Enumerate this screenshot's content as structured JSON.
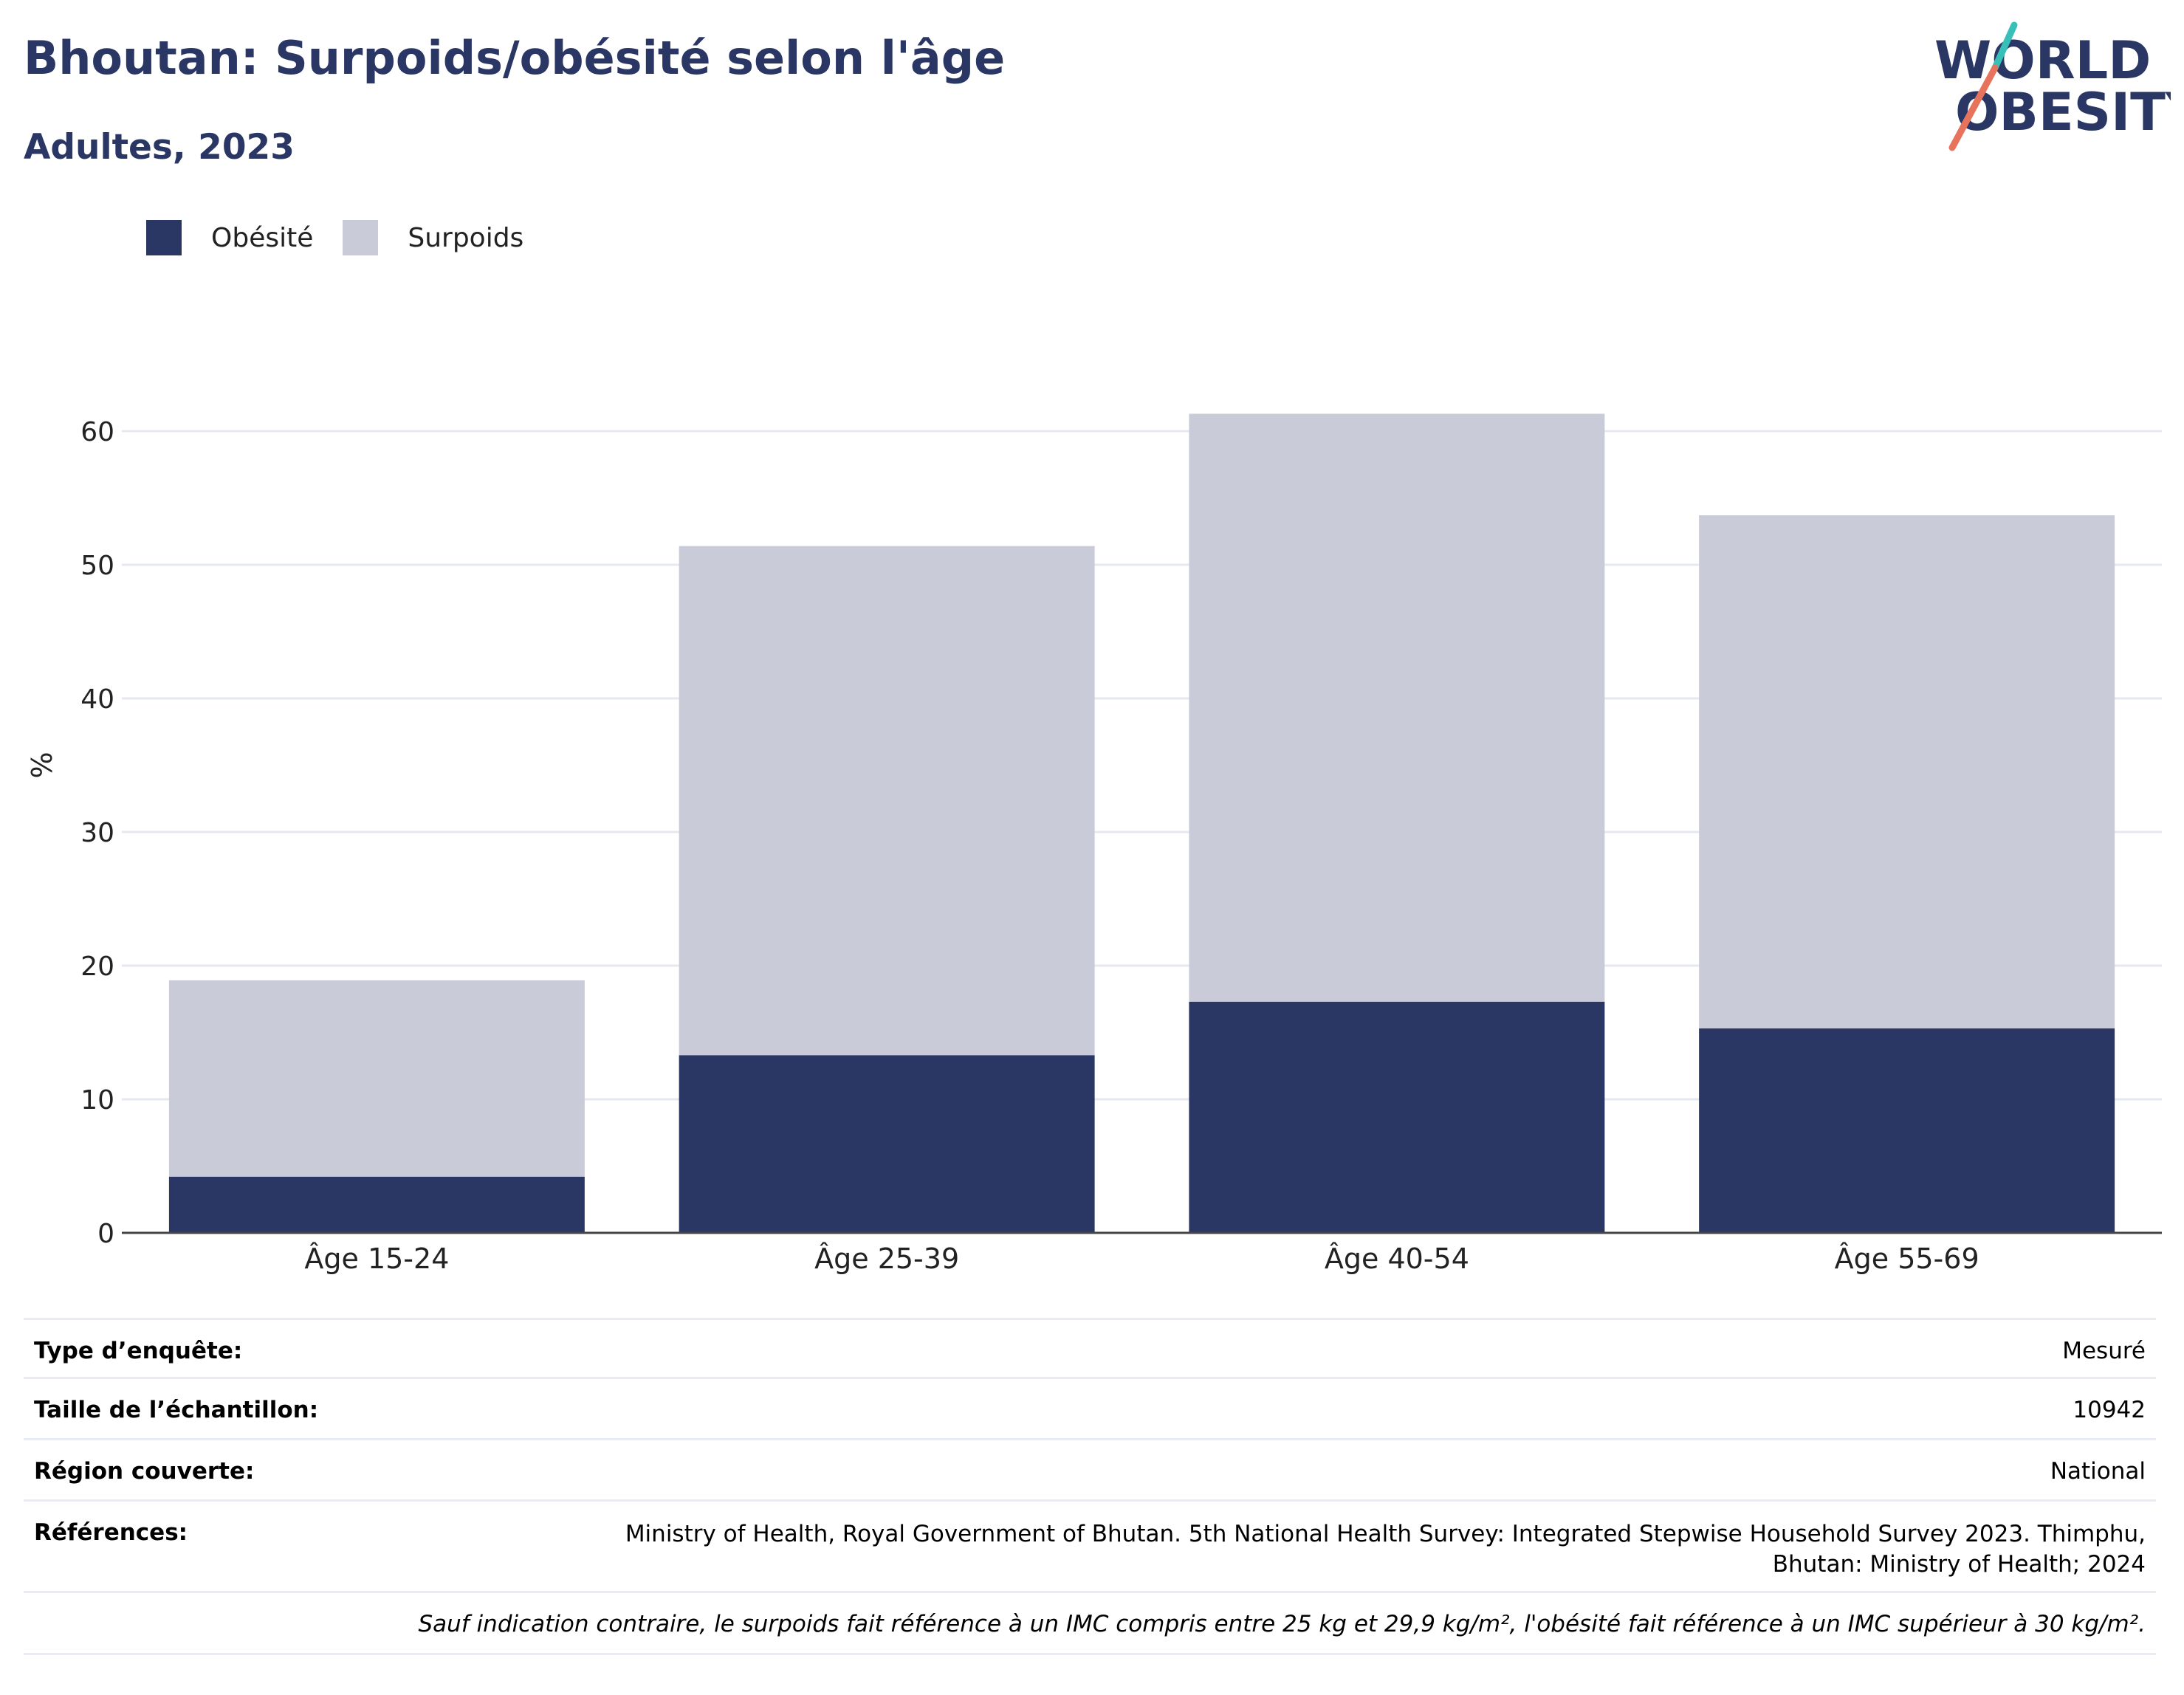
{
  "header": {
    "title": "Bhoutan: Surpoids/obésité selon l'âge",
    "subtitle": "Adultes, 2023"
  },
  "logo": {
    "line1": "WORLD",
    "line2": "OBESITY",
    "accent_colors": [
      "#37bfb8",
      "#e8735c"
    ]
  },
  "colors": {
    "obesity": "#2a3664",
    "overweight": "#c9ccd8",
    "grid": "#e6e8ef",
    "axis": "#444444"
  },
  "legend": [
    {
      "label": "Obésité",
      "color": "#2a3664"
    },
    {
      "label": "Surpoids",
      "color": "#c9ccd8"
    }
  ],
  "chart_data": {
    "type": "bar",
    "stacked": true,
    "categories": [
      "Âge 15-24",
      "Âge 25-39",
      "Âge 40-54",
      "Âge 55-69"
    ],
    "series": [
      {
        "name": "Obésité",
        "values": [
          4.2,
          13.3,
          17.3,
          15.3
        ]
      },
      {
        "name": "Surpoids",
        "values": [
          14.7,
          38.1,
          44.0,
          38.4
        ]
      }
    ],
    "ylabel": "%",
    "ylim": [
      0,
      70
    ],
    "yticks": [
      0,
      10,
      20,
      30,
      40,
      50,
      60
    ],
    "grid": true,
    "legend_position": "top-left"
  },
  "meta": {
    "survey_type": {
      "label": "Type d’enquête:",
      "value": "Mesuré"
    },
    "sample_size": {
      "label": "Taille de l’échantillon:",
      "value": "10942"
    },
    "region": {
      "label": "Région couverte:",
      "value": "National"
    },
    "references": {
      "label": "Références:",
      "value": "Ministry of Health, Royal Government of Bhutan. 5th National Health Survey: Integrated Stepwise Household Survey 2023. Thimphu, Bhutan: Ministry of Health; 2024"
    },
    "note": "Sauf indication contraire, le surpoids fait référence à un IMC compris entre 25 kg et 29,9 kg/m², l'obésité fait référence à un IMC supérieur à 30 kg/m²."
  }
}
